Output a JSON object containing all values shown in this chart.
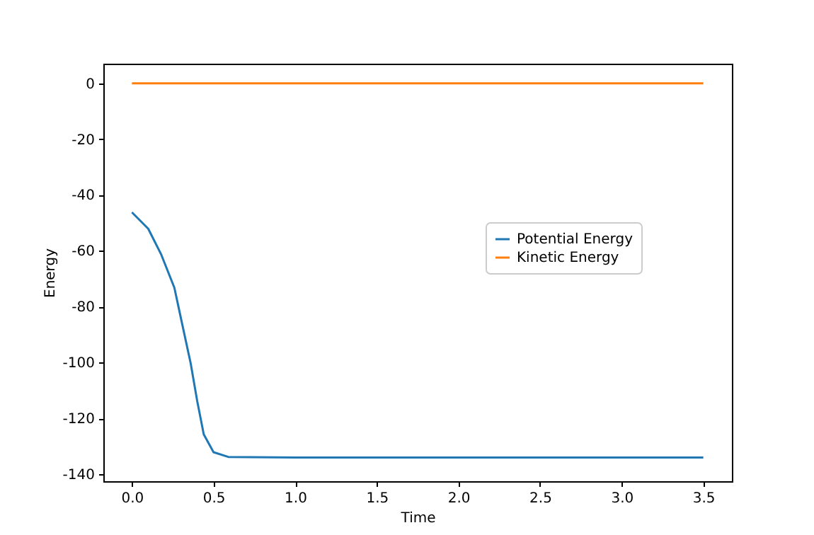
{
  "chart_data": {
    "type": "line",
    "xlabel": "Time",
    "ylabel": "Energy",
    "xlim": [
      -0.175,
      3.675
    ],
    "xticks": [
      {
        "value": 0,
        "label": "0.0"
      },
      {
        "value": 0.5,
        "label": "0.5"
      },
      {
        "value": 1,
        "label": "1.0"
      },
      {
        "value": 1.5,
        "label": "1.5"
      },
      {
        "value": 2,
        "label": "2.0"
      },
      {
        "value": 2.5,
        "label": "2.5"
      },
      {
        "value": 3,
        "label": "3.0"
      },
      {
        "value": 3.5,
        "label": "3.5"
      }
    ],
    "ylim": [
      -142.5,
      7
    ],
    "yticks": [
      -140,
      -120,
      -100,
      -80,
      -60,
      -40,
      -20,
      0
    ],
    "grid": false,
    "legend": "right",
    "series": [
      {
        "name": "Potential Energy",
        "color": "#1f77b4",
        "x": [
          0,
          0.1,
          0.18,
          0.26,
          0.31,
          0.36,
          0.4,
          0.44,
          0.5,
          0.59,
          1,
          1.5,
          2,
          2.5,
          3,
          3.5
        ],
        "values": [
          -46.2,
          -52.1,
          -61.4,
          -73.2,
          -86.8,
          -100.3,
          -113.8,
          -125.7,
          -132.1,
          -133.8,
          -134,
          -134,
          -134,
          -134,
          -134,
          -134
        ]
      },
      {
        "name": "Kinetic Energy",
        "color": "#ff7f0e",
        "x": [
          0,
          3.5
        ],
        "values": [
          0,
          0
        ]
      }
    ]
  }
}
